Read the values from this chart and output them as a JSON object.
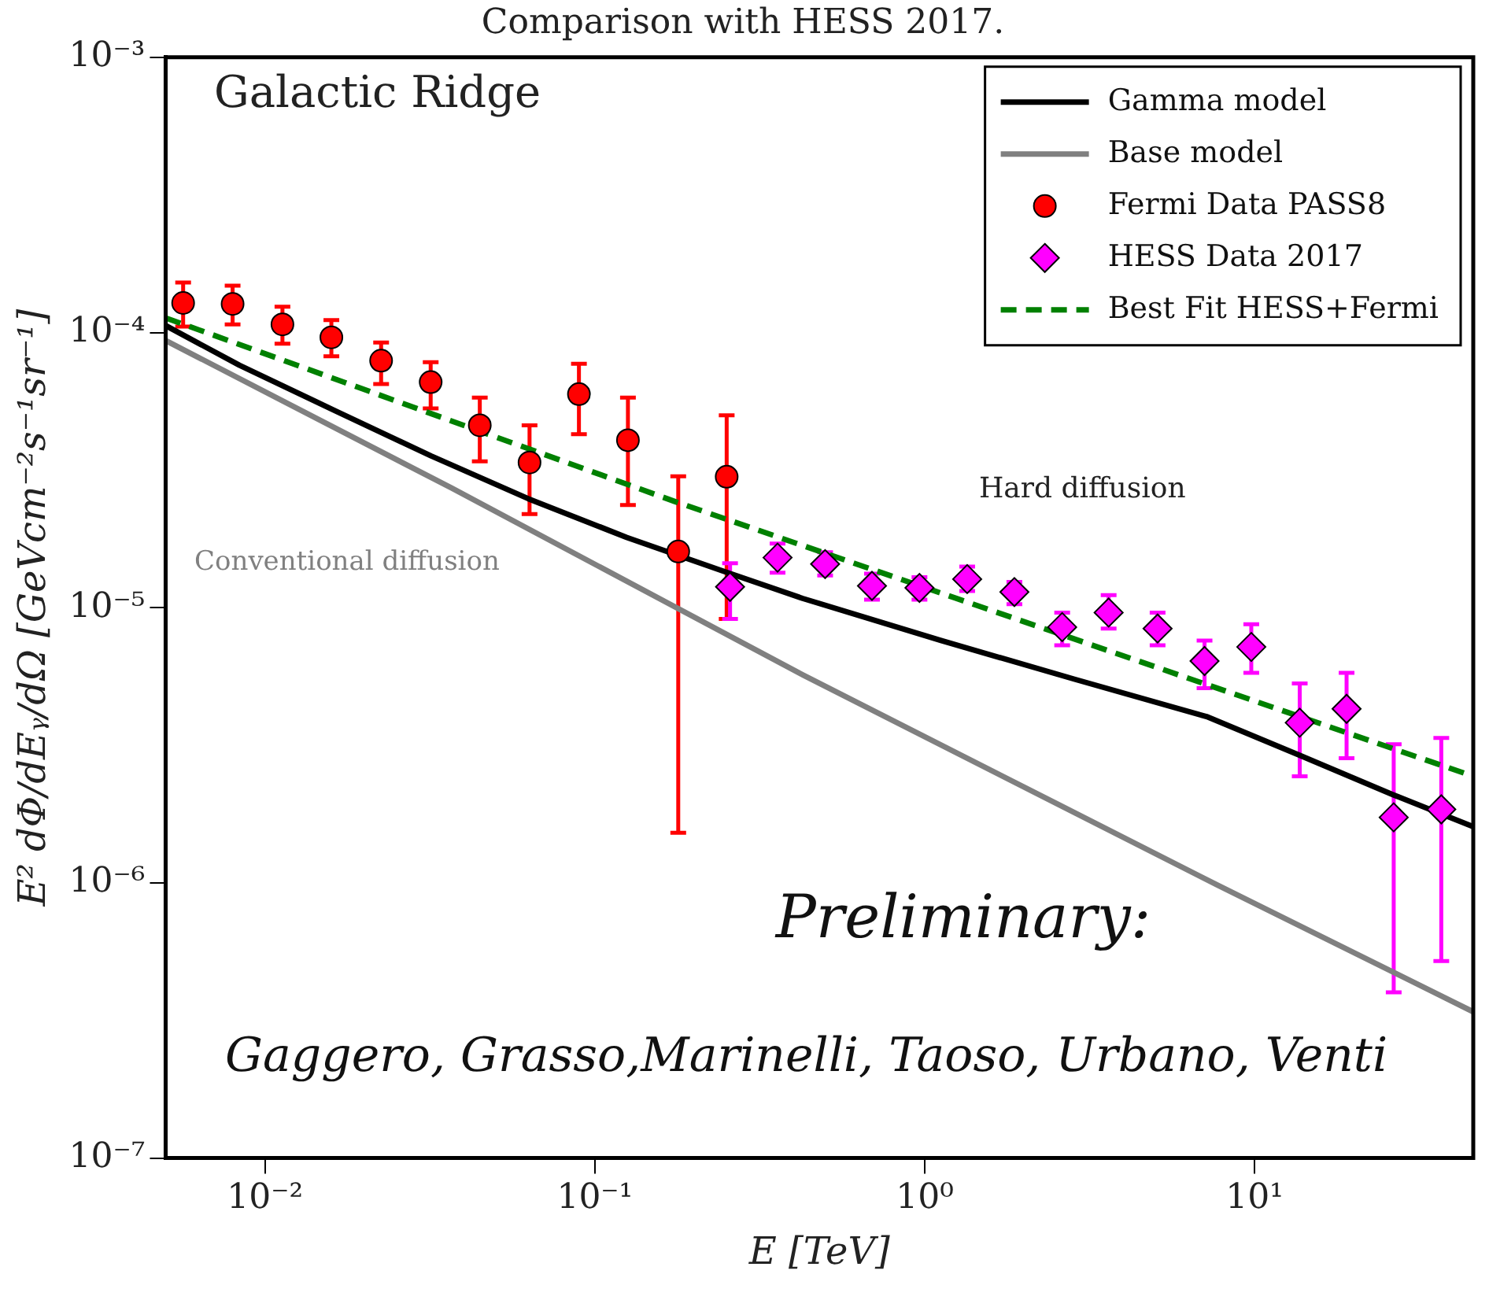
{
  "chart_data": {
    "type": "line",
    "title": "Comparison with HESS 2017.",
    "xlabel": "E [TeV]",
    "ylabel": "E² dΦ/dEᵧ/dΩ [GeVcm⁻²s⁻¹sr⁻¹]",
    "log": "xy",
    "grid": false,
    "legend": "top right",
    "xlim": [
      0.005,
      46
    ],
    "ylim": [
      1e-07,
      0.001
    ],
    "xticks": [
      {
        "value": 0.01,
        "label": "10⁻²"
      },
      {
        "value": 0.1,
        "label": "10⁻¹"
      },
      {
        "value": 1,
        "label": "10⁰"
      },
      {
        "value": 10,
        "label": "10¹"
      }
    ],
    "yticks": [
      {
        "value": 1e-07,
        "label": "10⁻⁷"
      },
      {
        "value": 1e-06,
        "label": "10⁻⁶"
      },
      {
        "value": 1e-05,
        "label": "10⁻⁵"
      },
      {
        "value": 0.0001,
        "label": "10⁻⁴"
      },
      {
        "value": 0.001,
        "label": "10⁻³"
      }
    ],
    "series": [
      {
        "name": "Gamma model",
        "color": "#000000",
        "type": "line",
        "marker": "none",
        "line_style": "solid",
        "x": [
          0.005,
          0.00837,
          0.0163,
          0.0319,
          0.0628,
          0.125,
          0.244,
          0.427,
          1.12,
          2.84,
          7.15,
          13.6,
          26.3,
          46
        ],
        "values": [
          0.000106,
          7.6e-05,
          5.2e-05,
          3.56e-05,
          2.49e-05,
          1.8e-05,
          1.36e-05,
          1.08e-05,
          7.6e-06,
          5.5e-06,
          4.02e-06,
          2.92e-06,
          2.09e-06,
          1.6e-06
        ]
      },
      {
        "name": "Base model",
        "color": "#808080",
        "type": "line",
        "marker": "none",
        "line_style": "solid",
        "x": [
          0.005,
          0.0368,
          0.427,
          7.73,
          46
        ],
        "values": [
          9.35e-05,
          2.72e-05,
          5.7e-06,
          9.8e-07,
          3.4e-07
        ]
      },
      {
        "name": "Fermi Data PASS8",
        "color": "#ff0000",
        "type": "scatter",
        "marker": "circle",
        "x": [
          0.00565,
          0.00798,
          0.0113,
          0.0159,
          0.0225,
          0.0318,
          0.0448,
          0.0634,
          0.0895,
          0.126,
          0.179,
          0.251
        ],
        "values": [
          0.000128,
          0.000127,
          0.000107,
          9.6e-05,
          7.9e-05,
          6.6e-05,
          4.6e-05,
          3.37e-05,
          5.97e-05,
          4.06e-05,
          1.6e-05,
          2.99e-05
        ],
        "errors": [
          [
            0.000105,
            0.000152
          ],
          [
            0.000107,
            0.000148
          ],
          [
            9.1e-05,
            0.000124
          ],
          [
            8.2e-05,
            0.000111
          ],
          [
            6.5e-05,
            9.2e-05
          ],
          [
            5.3e-05,
            7.8e-05
          ],
          [
            3.4e-05,
            5.8e-05
          ],
          [
            2.19e-05,
            4.6e-05
          ],
          [
            4.27e-05,
            7.7e-05
          ],
          [
            2.36e-05,
            5.8e-05
          ],
          [
            1.52e-06,
            3e-05
          ],
          [
            9.1e-06,
            5e-05
          ]
        ]
      },
      {
        "name": "HESS Data 2017",
        "color": "#ff00ff",
        "type": "scatter",
        "marker": "diamond",
        "x": [
          0.257,
          0.358,
          0.499,
          0.692,
          0.964,
          1.345,
          1.87,
          2.61,
          3.61,
          5.08,
          7.05,
          9.77,
          13.7,
          19,
          26.4,
          36.8
        ],
        "values": [
          1.19e-05,
          1.52e-05,
          1.44e-05,
          1.2e-05,
          1.18e-05,
          1.27e-05,
          1.14e-05,
          8.5e-06,
          9.6e-06,
          8.4e-06,
          6.4e-06,
          7.2e-06,
          3.82e-06,
          4.29e-06,
          1.73e-06,
          1.85e-06
        ],
        "errors": [
          [
            9.1e-06,
            1.45e-05
          ],
          [
            1.34e-05,
            1.71e-05
          ],
          [
            1.31e-05,
            1.59e-05
          ],
          [
            1.07e-05,
            1.33e-05
          ],
          [
            1.07e-05,
            1.29e-05
          ],
          [
            1.15e-05,
            1.41e-05
          ],
          [
            1.03e-05,
            1.24e-05
          ],
          [
            7.3e-06,
            9.6e-06
          ],
          [
            8.4e-06,
            1.11e-05
          ],
          [
            7.3e-06,
            9.6e-06
          ],
          [
            5.1e-06,
            7.6e-06
          ],
          [
            5.8e-06,
            8.7e-06
          ],
          [
            2.44e-06,
            5.3e-06
          ],
          [
            2.84e-06,
            5.8e-06
          ],
          [
            4e-07,
            3.19e-06
          ],
          [
            5.2e-07,
            3.36e-06
          ]
        ]
      },
      {
        "name": "Best Fit HESS+Fermi",
        "color": "#008000",
        "type": "line",
        "marker": "none",
        "line_style": "dashed",
        "x": [
          0.005,
          0.175,
          46
        ],
        "values": [
          0.000113,
          2.43e-05,
          2.44e-06
        ]
      }
    ],
    "annotations": [
      "Galactic Ridge",
      "Conventional diffusion",
      "Hard diffusion",
      "Preliminary:",
      "Gaggero, Grasso,Marinelli, Taoso, Urbano, Venti"
    ]
  }
}
